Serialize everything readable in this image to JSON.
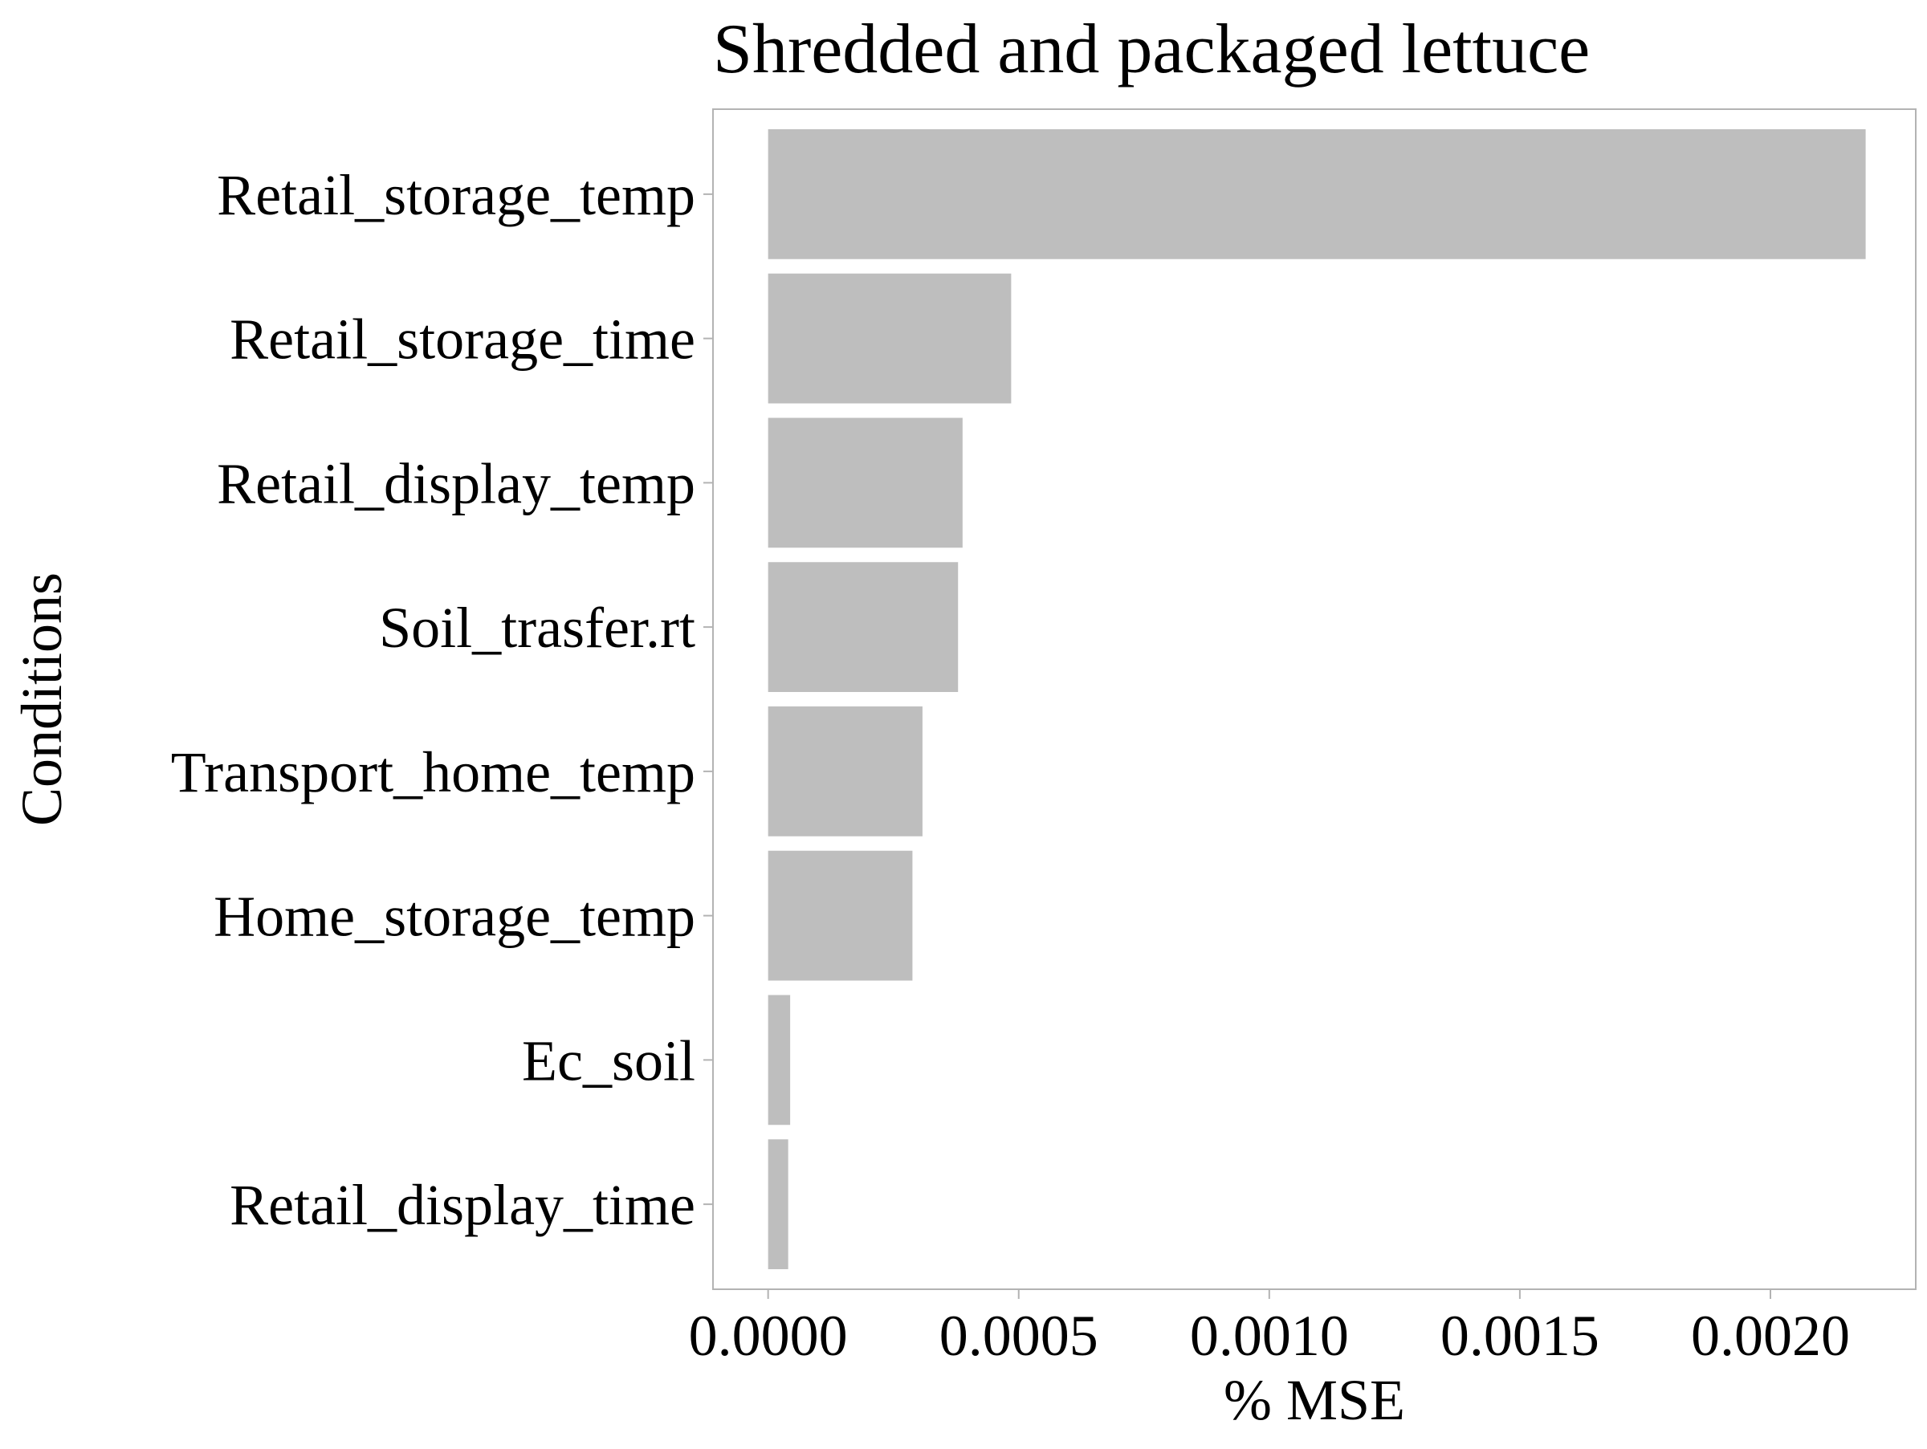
{
  "chart_data": {
    "type": "bar",
    "orientation": "horizontal",
    "title": "Shredded and packaged lettuce",
    "xlabel": "% MSE",
    "ylabel": "Conditions",
    "categories": [
      "Retail_storage_temp",
      "Retail_storage_time",
      "Retail_display_temp",
      "Soil_trasfer.rt",
      "Transport_home_temp",
      "Home_storage_temp",
      "Ec_soil",
      "Retail_display_time"
    ],
    "values": [
      0.00219,
      0.000485,
      0.000388,
      0.000379,
      0.000308,
      0.000288,
      4.4e-05,
      4e-05
    ],
    "xlim": [
      -0.00011,
      0.00229
    ],
    "xticks": [
      0.0,
      0.0005,
      0.001,
      0.0015,
      0.002
    ],
    "xtick_labels": [
      "0.0000",
      "0.0005",
      "0.0010",
      "0.0015",
      "0.0020"
    ],
    "bar_color": "#bebebe",
    "panel_border_color": "#b3b3b3",
    "grid": false,
    "legend": "none"
  }
}
